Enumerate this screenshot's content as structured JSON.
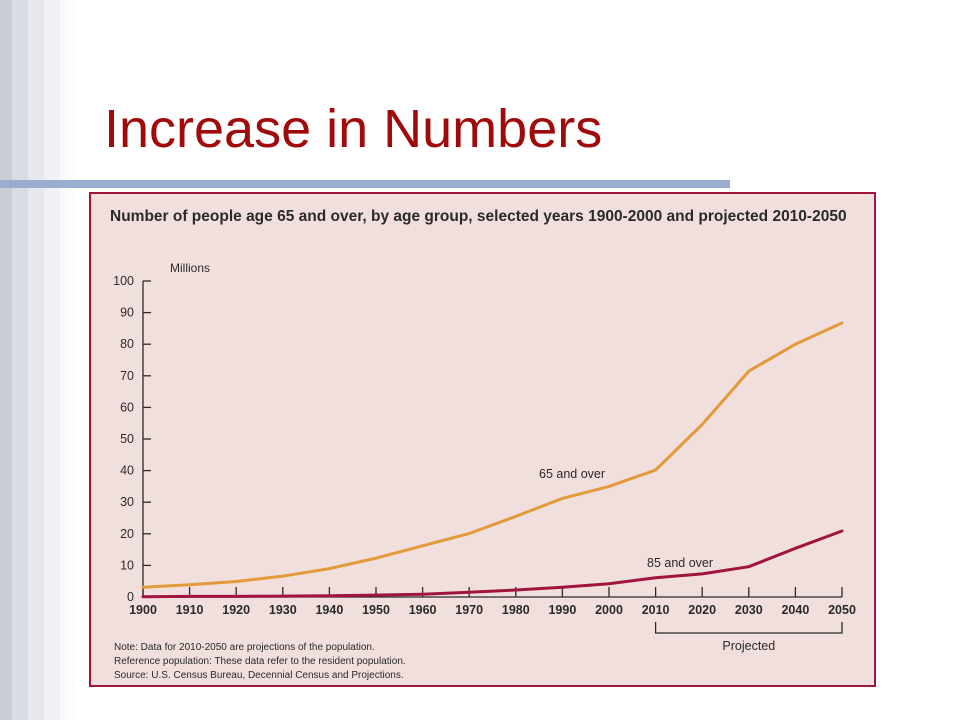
{
  "slide": {
    "title": "Increase in Numbers"
  },
  "colors": {
    "title": "#a00a0a",
    "rule": "#9aaccf",
    "frame_border": "#a0153e",
    "frame_bg": "#f1dfde",
    "series_65": "#e39a3a",
    "series_85": "#a0153e"
  },
  "chart_data": {
    "type": "line",
    "title": "Number of people age 65 and over, by age group, selected years 1900-2000 and projected 2010-2050",
    "ylabel": "Millions",
    "xlabel": "",
    "x": [
      1900,
      1910,
      1920,
      1930,
      1940,
      1950,
      1960,
      1970,
      1980,
      1990,
      2000,
      2010,
      2020,
      2030,
      2040,
      2050
    ],
    "ylim": [
      0,
      100
    ],
    "yticks": [
      0,
      10,
      20,
      30,
      40,
      50,
      60,
      70,
      80,
      90,
      100
    ],
    "series": [
      {
        "name": "65 and over",
        "values": [
          3.1,
          3.9,
          4.9,
          6.6,
          9.0,
          12.3,
          16.2,
          20.1,
          25.5,
          31.2,
          35.0,
          40.2,
          54.6,
          71.5,
          80.0,
          86.7
        ]
      },
      {
        "name": "85 and over",
        "values": [
          0.1,
          0.2,
          0.2,
          0.3,
          0.4,
          0.6,
          0.9,
          1.5,
          2.2,
          3.1,
          4.2,
          6.1,
          7.3,
          9.6,
          15.4,
          20.9
        ]
      }
    ],
    "bracket_label": "Projected",
    "grid": false,
    "legend": "inline labels"
  },
  "notes": [
    "Note: Data for 2010-2050 are projections of the population.",
    "Reference population: These data refer to the resident population.",
    "Source: U.S. Census Bureau, Decennial Census and Projections."
  ]
}
